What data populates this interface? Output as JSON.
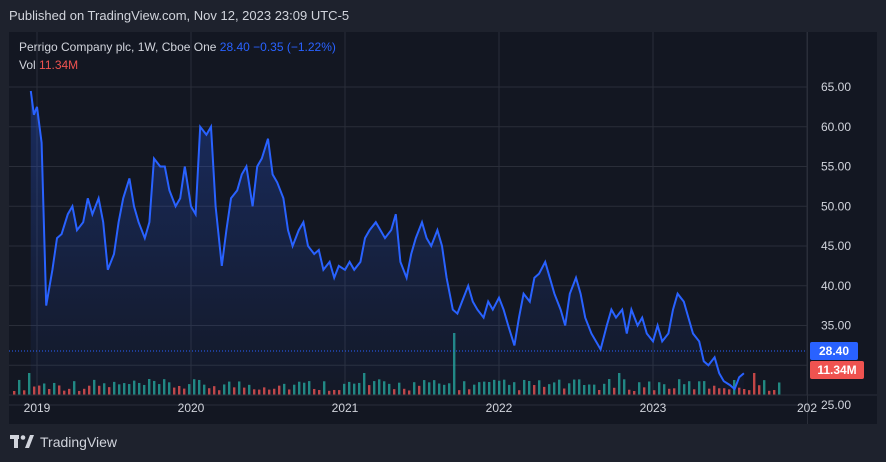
{
  "publish_text": "Published on TradingView.com, Nov 12, 2023 23:09 UTC-5",
  "legend": {
    "title": "Perrigo Company plc, 1W, Cboe One",
    "price": "28.40",
    "change": "−0.35 (−1.22%)",
    "vol_label": "Vol",
    "vol_value": "11.34M"
  },
  "badges": {
    "price": "28.40",
    "volume": "11.34M"
  },
  "footer": {
    "brand": "TradingView",
    "logo_icon": "tradingview-logo-icon"
  },
  "colors": {
    "line": "#2962ff",
    "up": "#26a69a",
    "down": "#ef5350",
    "background": "#131722"
  },
  "chart_data": {
    "type": "line",
    "series": [
      {
        "values": [
          [
            2018.96,
            64.5
          ],
          [
            2018.98,
            61.5
          ],
          [
            2019.0,
            62.5
          ],
          [
            2019.03,
            58
          ],
          [
            2019.06,
            37.5
          ],
          [
            2019.1,
            42
          ],
          [
            2019.13,
            46
          ],
          [
            2019.16,
            46.5
          ],
          [
            2019.2,
            49
          ],
          [
            2019.23,
            50
          ],
          [
            2019.26,
            47
          ],
          [
            2019.3,
            48
          ],
          [
            2019.33,
            51
          ],
          [
            2019.36,
            49
          ],
          [
            2019.4,
            51
          ],
          [
            2019.43,
            48
          ],
          [
            2019.46,
            42
          ],
          [
            2019.5,
            44
          ],
          [
            2019.53,
            48
          ],
          [
            2019.56,
            51
          ],
          [
            2019.6,
            53.5
          ],
          [
            2019.63,
            50
          ],
          [
            2019.66,
            48
          ],
          [
            2019.7,
            46
          ],
          [
            2019.73,
            48
          ],
          [
            2019.76,
            56
          ],
          [
            2019.8,
            55
          ],
          [
            2019.83,
            55
          ],
          [
            2019.86,
            52
          ],
          [
            2019.9,
            50
          ],
          [
            2019.93,
            51
          ],
          [
            2019.96,
            55
          ],
          [
            2020.0,
            50
          ],
          [
            2020.03,
            49
          ],
          [
            2020.06,
            60
          ],
          [
            2020.1,
            59
          ],
          [
            2020.13,
            60
          ],
          [
            2020.16,
            50
          ],
          [
            2020.2,
            42.5
          ],
          [
            2020.23,
            47
          ],
          [
            2020.26,
            51
          ],
          [
            2020.3,
            52
          ],
          [
            2020.33,
            54
          ],
          [
            2020.36,
            55
          ],
          [
            2020.4,
            50
          ],
          [
            2020.43,
            55
          ],
          [
            2020.46,
            56
          ],
          [
            2020.5,
            58.5
          ],
          [
            2020.53,
            54
          ],
          [
            2020.56,
            53
          ],
          [
            2020.6,
            51
          ],
          [
            2020.63,
            47
          ],
          [
            2020.66,
            45
          ],
          [
            2020.7,
            47
          ],
          [
            2020.73,
            48
          ],
          [
            2020.76,
            45
          ],
          [
            2020.8,
            44
          ],
          [
            2020.83,
            44.5
          ],
          [
            2020.86,
            42
          ],
          [
            2020.9,
            43
          ],
          [
            2020.93,
            41
          ],
          [
            2020.96,
            42.5
          ],
          [
            2021.0,
            42
          ],
          [
            2021.03,
            43
          ],
          [
            2021.06,
            42
          ],
          [
            2021.1,
            43
          ],
          [
            2021.13,
            46
          ],
          [
            2021.16,
            47
          ],
          [
            2021.2,
            48
          ],
          [
            2021.23,
            47
          ],
          [
            2021.26,
            46
          ],
          [
            2021.3,
            47
          ],
          [
            2021.33,
            49
          ],
          [
            2021.36,
            43
          ],
          [
            2021.4,
            41
          ],
          [
            2021.43,
            44
          ],
          [
            2021.46,
            46
          ],
          [
            2021.5,
            48
          ],
          [
            2021.53,
            46
          ],
          [
            2021.56,
            45
          ],
          [
            2021.6,
            47
          ],
          [
            2021.63,
            45
          ],
          [
            2021.66,
            41
          ],
          [
            2021.7,
            37
          ],
          [
            2021.73,
            36.5
          ],
          [
            2021.76,
            38
          ],
          [
            2021.8,
            40
          ],
          [
            2021.83,
            38
          ],
          [
            2021.86,
            37
          ],
          [
            2021.9,
            36
          ],
          [
            2021.93,
            38
          ],
          [
            2021.96,
            37
          ],
          [
            2022.0,
            38.5
          ],
          [
            2022.03,
            37
          ],
          [
            2022.06,
            35
          ],
          [
            2022.1,
            32.5
          ],
          [
            2022.13,
            36
          ],
          [
            2022.16,
            39
          ],
          [
            2022.2,
            38
          ],
          [
            2022.23,
            41
          ],
          [
            2022.26,
            41.5
          ],
          [
            2022.3,
            43
          ],
          [
            2022.33,
            41
          ],
          [
            2022.36,
            39
          ],
          [
            2022.4,
            37
          ],
          [
            2022.43,
            35
          ],
          [
            2022.46,
            39
          ],
          [
            2022.5,
            41
          ],
          [
            2022.53,
            39
          ],
          [
            2022.56,
            36
          ],
          [
            2022.6,
            34
          ],
          [
            2022.63,
            33
          ],
          [
            2022.66,
            32
          ],
          [
            2022.7,
            35
          ],
          [
            2022.73,
            37
          ],
          [
            2022.76,
            36
          ],
          [
            2022.8,
            37
          ],
          [
            2022.83,
            34
          ],
          [
            2022.86,
            37
          ],
          [
            2022.9,
            35
          ],
          [
            2022.93,
            36
          ],
          [
            2022.96,
            34
          ],
          [
            2023.0,
            33
          ],
          [
            2023.03,
            35
          ],
          [
            2023.06,
            33
          ],
          [
            2023.1,
            34
          ],
          [
            2023.13,
            37
          ],
          [
            2023.16,
            39
          ],
          [
            2023.2,
            38
          ],
          [
            2023.23,
            36
          ],
          [
            2023.26,
            34
          ],
          [
            2023.3,
            33
          ],
          [
            2023.33,
            30.5
          ],
          [
            2023.36,
            30
          ],
          [
            2023.4,
            31
          ],
          [
            2023.43,
            29
          ],
          [
            2023.46,
            28
          ],
          [
            2023.5,
            27.5
          ],
          [
            2023.53,
            27
          ],
          [
            2023.56,
            28.5
          ],
          [
            2023.59,
            29
          ]
        ]
      }
    ],
    "y_ticks": [
      "65.00",
      "60.00",
      "55.00",
      "50.00",
      "45.00",
      "40.00",
      "35.00",
      "30.00",
      "25.00"
    ],
    "x_ticks": [
      "2019",
      "2020",
      "2021",
      "2022",
      "2023",
      "202"
    ],
    "ylim": [
      24,
      66
    ],
    "grid": true
  }
}
